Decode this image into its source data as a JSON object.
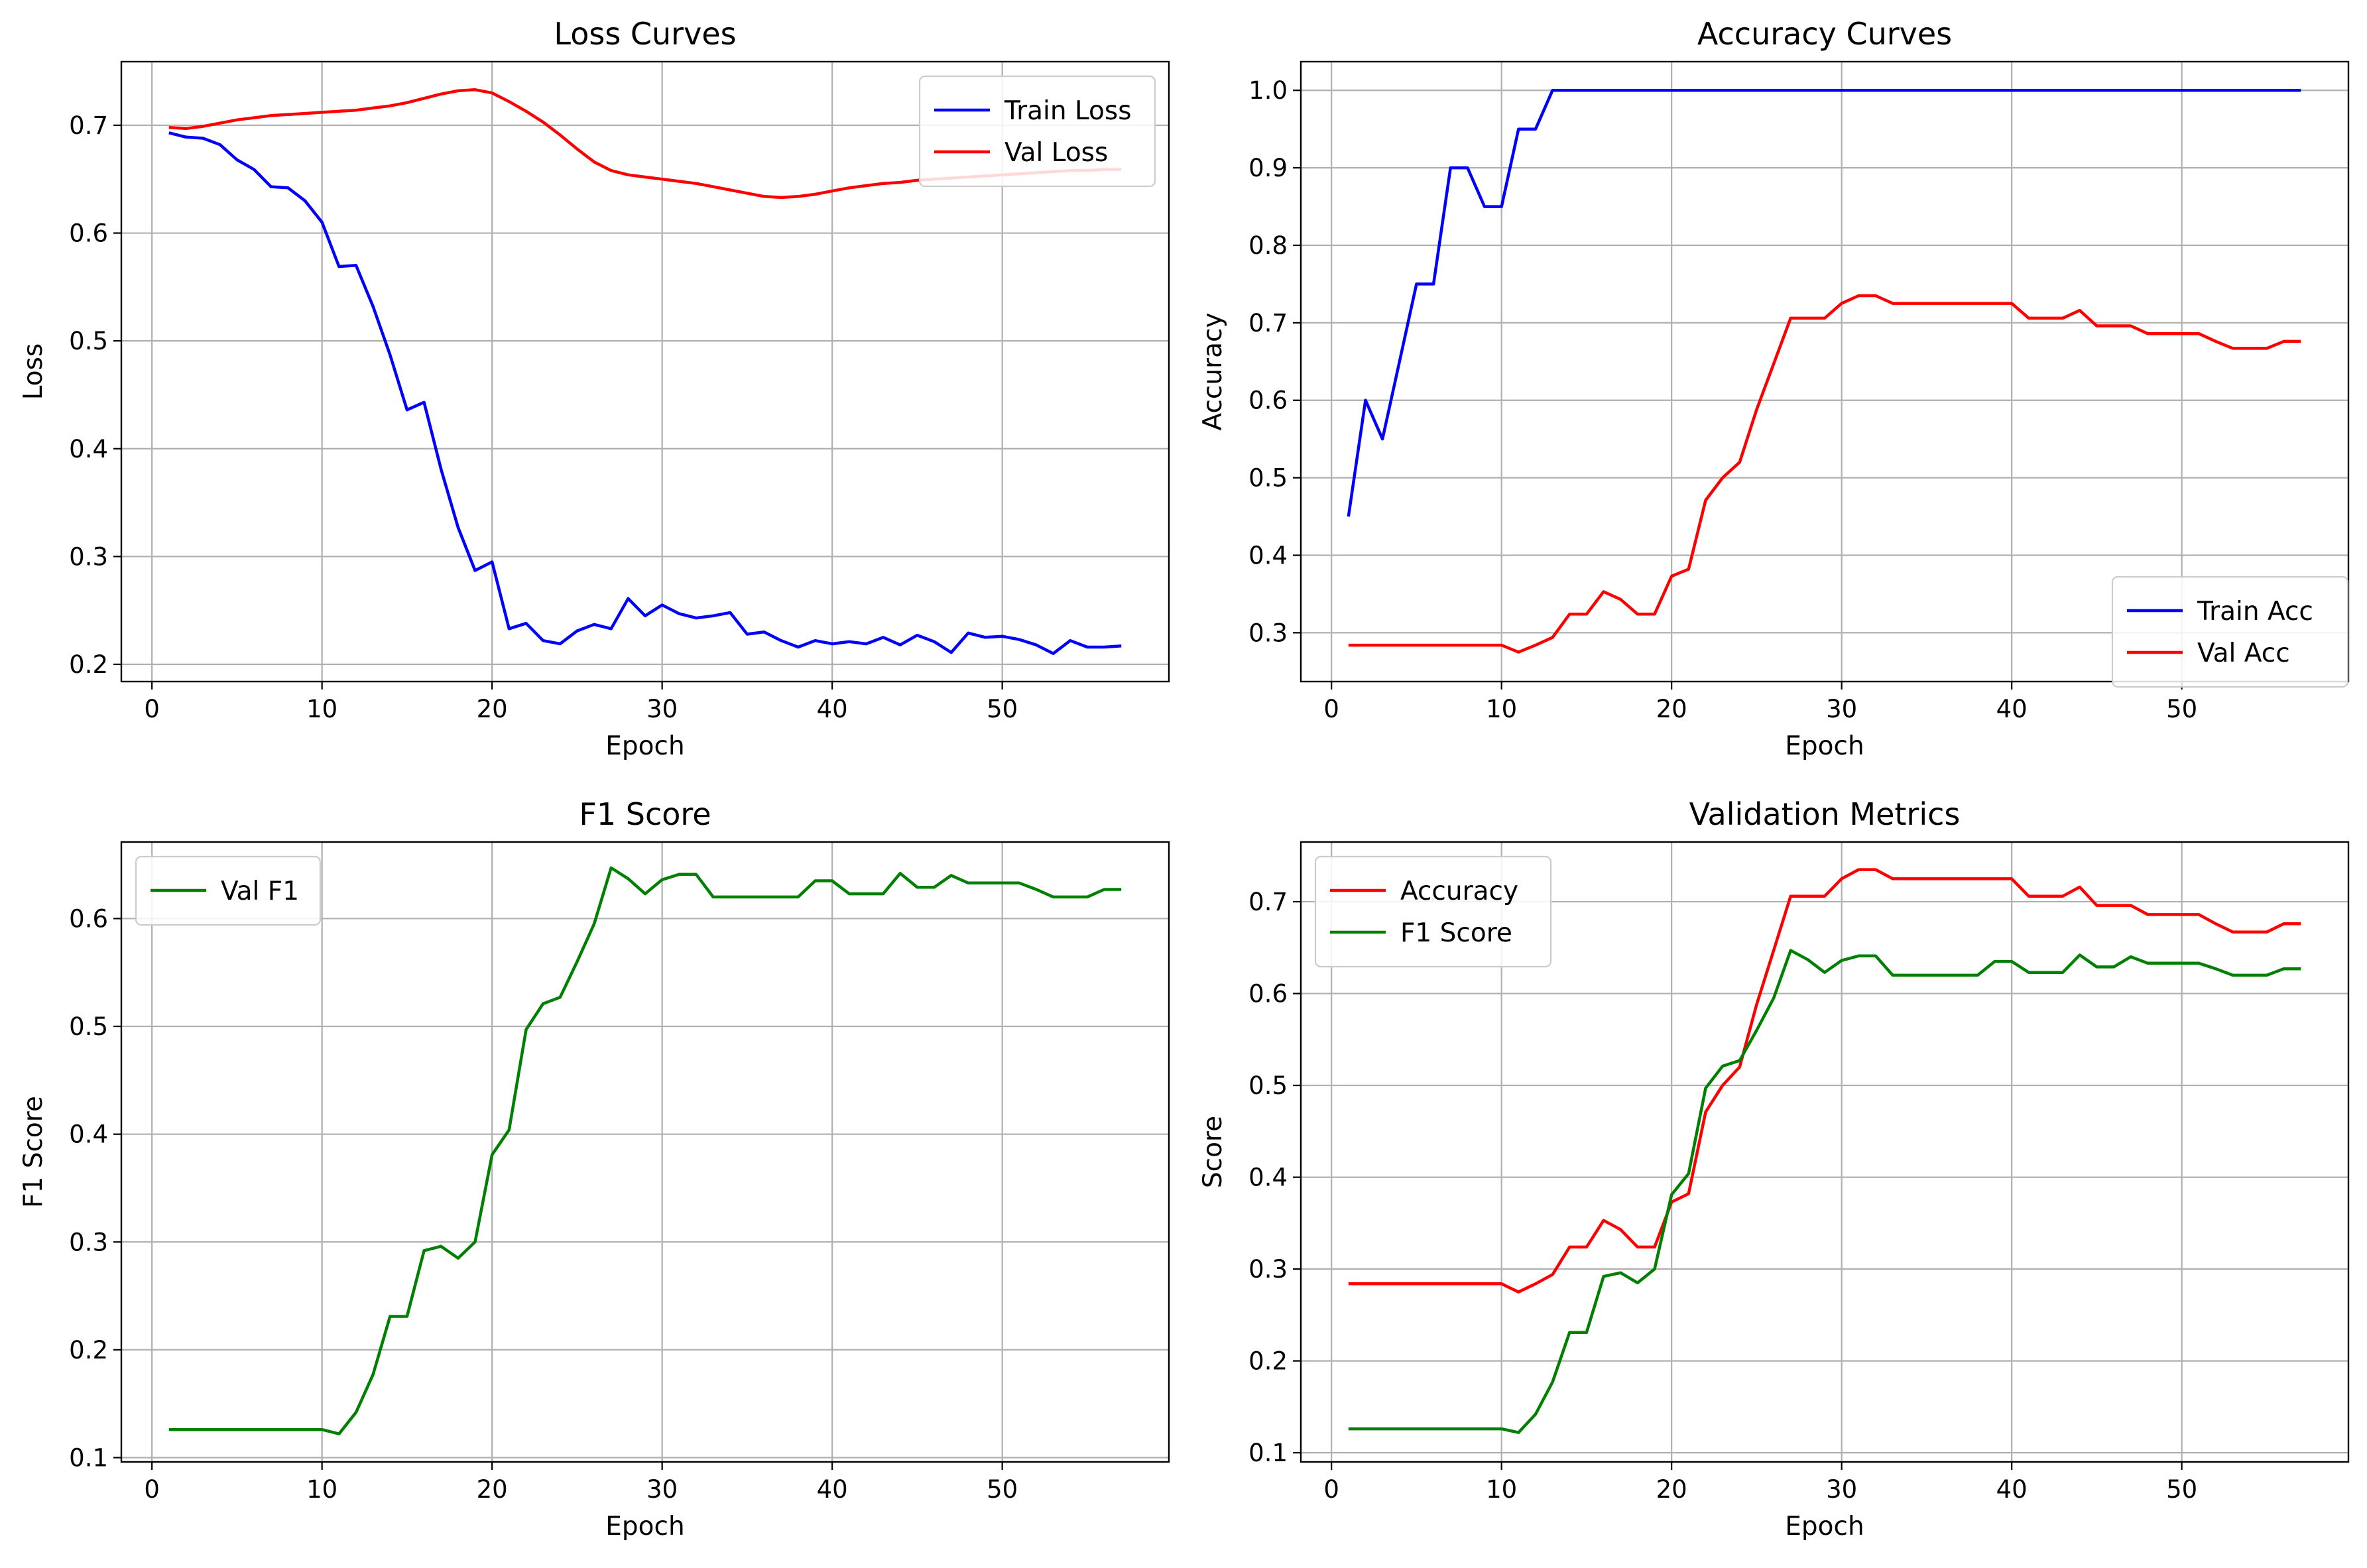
{
  "chart_data": [
    {
      "type": "line",
      "title": "Loss Curves",
      "xlabel": "Epoch",
      "ylabel": "Loss",
      "xlim": [
        -1.8,
        59.8
      ],
      "ylim": [
        0.184,
        0.759
      ],
      "xticks": [
        0,
        10,
        20,
        30,
        40,
        50
      ],
      "yticks": [
        0.2,
        0.3,
        0.4,
        0.5,
        0.6,
        0.7
      ],
      "ytick_labels": [
        "0.2",
        "0.3",
        "0.4",
        "0.5",
        "0.6",
        "0.7"
      ],
      "grid": true,
      "legend": "upper right",
      "x_start": 1,
      "series": [
        {
          "name": "Train Loss",
          "color": "#0000ff",
          "values": [
            0.693,
            0.689,
            0.688,
            0.682,
            0.668,
            0.659,
            0.643,
            0.642,
            0.63,
            0.61,
            0.569,
            0.57,
            0.532,
            0.487,
            0.436,
            0.443,
            0.381,
            0.327,
            0.287,
            0.295,
            0.233,
            0.238,
            0.222,
            0.219,
            0.231,
            0.237,
            0.233,
            0.261,
            0.245,
            0.255,
            0.247,
            0.243,
            0.245,
            0.248,
            0.228,
            0.23,
            0.222,
            0.216,
            0.222,
            0.219,
            0.221,
            0.219,
            0.225,
            0.218,
            0.227,
            0.221,
            0.211,
            0.229,
            0.225,
            0.226,
            0.223,
            0.218,
            0.21,
            0.222,
            0.216,
            0.216,
            0.217
          ]
        },
        {
          "name": "Val Loss",
          "color": "#ff0000",
          "values": [
            0.698,
            0.697,
            0.699,
            0.702,
            0.705,
            0.707,
            0.709,
            0.71,
            0.711,
            0.712,
            0.713,
            0.714,
            0.716,
            0.718,
            0.721,
            0.725,
            0.729,
            0.732,
            0.733,
            0.73,
            0.722,
            0.713,
            0.703,
            0.691,
            0.678,
            0.666,
            0.658,
            0.654,
            0.652,
            0.65,
            0.648,
            0.646,
            0.643,
            0.64,
            0.637,
            0.634,
            0.633,
            0.634,
            0.636,
            0.639,
            0.642,
            0.644,
            0.646,
            0.647,
            0.649,
            0.65,
            0.651,
            0.652,
            0.653,
            0.654,
            0.655,
            0.656,
            0.657,
            0.658,
            0.658,
            0.659,
            0.659
          ]
        }
      ]
    },
    {
      "type": "line",
      "title": "Accuracy Curves",
      "xlabel": "Epoch",
      "ylabel": "Accuracy",
      "xlim": [
        -1.8,
        59.8
      ],
      "ylim": [
        0.237,
        1.037
      ],
      "xticks": [
        0,
        10,
        20,
        30,
        40,
        50
      ],
      "yticks": [
        0.3,
        0.4,
        0.5,
        0.6,
        0.7,
        0.8,
        0.9,
        1.0
      ],
      "ytick_labels": [
        "0.3",
        "0.4",
        "0.5",
        "0.6",
        "0.7",
        "0.8",
        "0.9",
        "1.0"
      ],
      "grid": true,
      "legend": "lower right",
      "x_start": 1,
      "series": [
        {
          "name": "Train Acc",
          "color": "#0000ff",
          "values": [
            0.45,
            0.6,
            0.55,
            0.65,
            0.75,
            0.75,
            0.9,
            0.9,
            0.85,
            0.85,
            0.95,
            0.95,
            1.0,
            1.0,
            1.0,
            1.0,
            1.0,
            1.0,
            1.0,
            1.0,
            1.0,
            1.0,
            1.0,
            1.0,
            1.0,
            1.0,
            1.0,
            1.0,
            1.0,
            1.0,
            1.0,
            1.0,
            1.0,
            1.0,
            1.0,
            1.0,
            1.0,
            1.0,
            1.0,
            1.0,
            1.0,
            1.0,
            1.0,
            1.0,
            1.0,
            1.0,
            1.0,
            1.0,
            1.0,
            1.0,
            1.0,
            1.0,
            1.0,
            1.0,
            1.0,
            1.0,
            1.0
          ]
        },
        {
          "name": "Val Acc",
          "color": "#ff0000",
          "values": [
            0.284,
            0.284,
            0.284,
            0.284,
            0.284,
            0.284,
            0.284,
            0.284,
            0.284,
            0.284,
            0.275,
            0.284,
            0.294,
            0.324,
            0.324,
            0.353,
            0.343,
            0.324,
            0.324,
            0.373,
            0.382,
            0.471,
            0.5,
            0.52,
            0.588,
            0.647,
            0.706,
            0.706,
            0.706,
            0.725,
            0.735,
            0.735,
            0.725,
            0.725,
            0.725,
            0.725,
            0.725,
            0.725,
            0.725,
            0.725,
            0.706,
            0.706,
            0.706,
            0.716,
            0.696,
            0.696,
            0.696,
            0.686,
            0.686,
            0.686,
            0.686,
            0.676,
            0.667,
            0.667,
            0.667,
            0.676,
            0.676
          ]
        }
      ]
    },
    {
      "type": "line",
      "title": "F1 Score",
      "xlabel": "Epoch",
      "ylabel": "F1 Score",
      "xlim": [
        -1.8,
        59.8
      ],
      "ylim": [
        0.096,
        0.671
      ],
      "xticks": [
        0,
        10,
        20,
        30,
        40,
        50
      ],
      "yticks": [
        0.1,
        0.2,
        0.3,
        0.4,
        0.5,
        0.6
      ],
      "ytick_labels": [
        "0.1",
        "0.2",
        "0.3",
        "0.4",
        "0.5",
        "0.6"
      ],
      "grid": true,
      "legend": "upper left",
      "x_start": 1,
      "series": [
        {
          "name": "Val F1",
          "color": "#008000",
          "values": [
            0.126,
            0.126,
            0.126,
            0.126,
            0.126,
            0.126,
            0.126,
            0.126,
            0.126,
            0.126,
            0.122,
            0.142,
            0.177,
            0.231,
            0.231,
            0.292,
            0.296,
            0.285,
            0.3,
            0.381,
            0.404,
            0.497,
            0.521,
            0.527,
            0.56,
            0.595,
            0.647,
            0.637,
            0.623,
            0.636,
            0.641,
            0.641,
            0.62,
            0.62,
            0.62,
            0.62,
            0.62,
            0.62,
            0.635,
            0.635,
            0.623,
            0.623,
            0.623,
            0.642,
            0.629,
            0.629,
            0.64,
            0.633,
            0.633,
            0.633,
            0.633,
            0.627,
            0.62,
            0.62,
            0.62,
            0.627,
            0.627
          ]
        }
      ]
    },
    {
      "type": "line",
      "title": "Validation Metrics",
      "xlabel": "Epoch",
      "ylabel": "Score",
      "xlim": [
        -1.8,
        59.8
      ],
      "ylim": [
        0.09,
        0.765
      ],
      "xticks": [
        0,
        10,
        20,
        30,
        40,
        50
      ],
      "yticks": [
        0.1,
        0.2,
        0.3,
        0.4,
        0.5,
        0.6,
        0.7
      ],
      "ytick_labels": [
        "0.1",
        "0.2",
        "0.3",
        "0.4",
        "0.5",
        "0.6",
        "0.7"
      ],
      "grid": true,
      "legend": "upper left",
      "x_start": 1,
      "series": [
        {
          "name": "Accuracy",
          "color": "#ff0000",
          "values": [
            0.284,
            0.284,
            0.284,
            0.284,
            0.284,
            0.284,
            0.284,
            0.284,
            0.284,
            0.284,
            0.275,
            0.284,
            0.294,
            0.324,
            0.324,
            0.353,
            0.343,
            0.324,
            0.324,
            0.373,
            0.382,
            0.471,
            0.5,
            0.52,
            0.588,
            0.647,
            0.706,
            0.706,
            0.706,
            0.725,
            0.735,
            0.735,
            0.725,
            0.725,
            0.725,
            0.725,
            0.725,
            0.725,
            0.725,
            0.725,
            0.706,
            0.706,
            0.706,
            0.716,
            0.696,
            0.696,
            0.696,
            0.686,
            0.686,
            0.686,
            0.686,
            0.676,
            0.667,
            0.667,
            0.667,
            0.676,
            0.676
          ]
        },
        {
          "name": "F1 Score",
          "color": "#008000",
          "values": [
            0.126,
            0.126,
            0.126,
            0.126,
            0.126,
            0.126,
            0.126,
            0.126,
            0.126,
            0.126,
            0.122,
            0.142,
            0.177,
            0.231,
            0.231,
            0.292,
            0.296,
            0.285,
            0.3,
            0.381,
            0.404,
            0.497,
            0.521,
            0.527,
            0.56,
            0.595,
            0.647,
            0.637,
            0.623,
            0.636,
            0.641,
            0.641,
            0.62,
            0.62,
            0.62,
            0.62,
            0.62,
            0.62,
            0.635,
            0.635,
            0.623,
            0.623,
            0.623,
            0.642,
            0.629,
            0.629,
            0.64,
            0.633,
            0.633,
            0.633,
            0.633,
            0.627,
            0.62,
            0.62,
            0.62,
            0.627,
            0.627
          ]
        }
      ]
    }
  ]
}
